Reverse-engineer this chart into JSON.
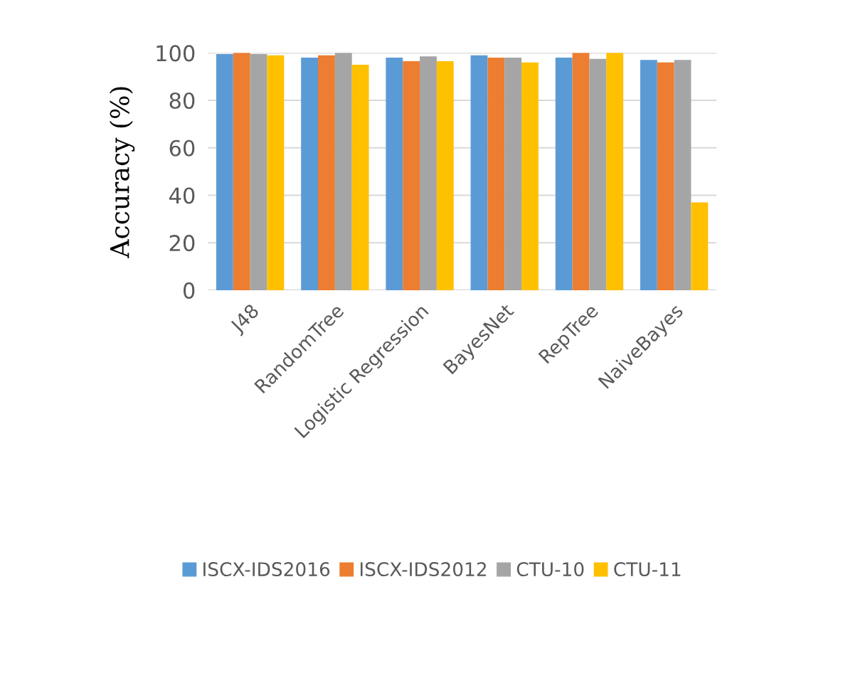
{
  "chart_data": {
    "type": "bar",
    "ylabel": "Accuracy (%)",
    "categories": [
      "J48",
      "RandomTree",
      "Logistic Regression",
      "BayesNet",
      "RepTree",
      "NaiveBayes"
    ],
    "series": [
      {
        "name": "ISCX-IDS2016",
        "color": "#5b9bd5",
        "values": [
          99.5,
          98,
          98,
          99,
          98,
          97
        ]
      },
      {
        "name": "ISCX-IDS2012",
        "color": "#ed7d31",
        "values": [
          100,
          99,
          96.5,
          98,
          100,
          96
        ]
      },
      {
        "name": "CTU-10",
        "color": "#a5a5a5",
        "values": [
          99.5,
          100,
          98.5,
          98,
          97.5,
          97
        ]
      },
      {
        "name": "CTU-11",
        "color": "#ffc000",
        "values": [
          99,
          95,
          96.5,
          96,
          100,
          37
        ]
      }
    ],
    "ylim": [
      0,
      100
    ],
    "yticks": [
      0,
      20,
      40,
      60,
      80,
      100
    ],
    "grid": "y",
    "legend": "bottom"
  }
}
